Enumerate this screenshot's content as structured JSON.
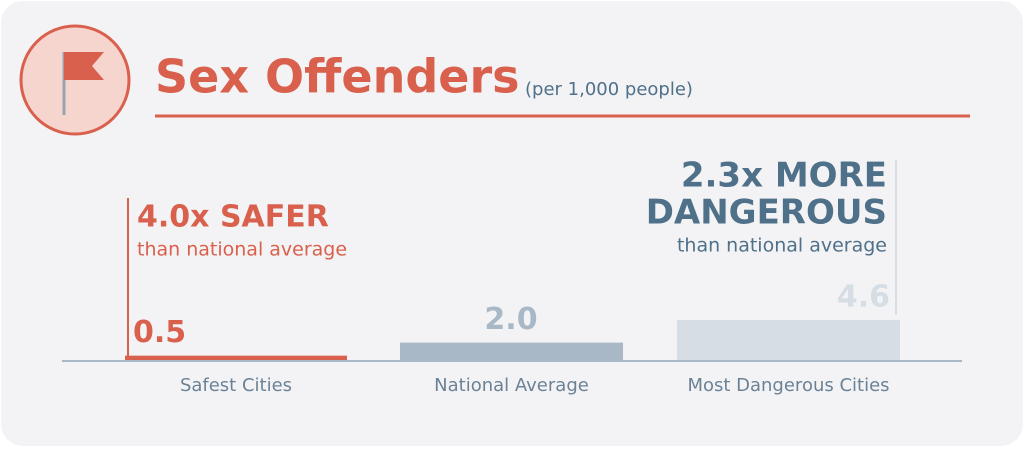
{
  "chart_data": {
    "type": "bar",
    "title": "Sex Offenders",
    "subtitle": "(per 1,000 people)",
    "categories": [
      "Safest Cities",
      "National Average",
      "Most Dangerous Cities"
    ],
    "values": [
      0.5,
      2.0,
      4.6
    ],
    "value_labels": [
      "0.5",
      "2.0",
      "4.6"
    ],
    "colors": [
      "#d9604c",
      "#a9b8c6",
      "#d6dde4"
    ],
    "annotations": [
      "4.0x SAFER",
      "than national average",
      "2.3x MORE",
      "DANGEROUS",
      "than national average"
    ]
  }
}
